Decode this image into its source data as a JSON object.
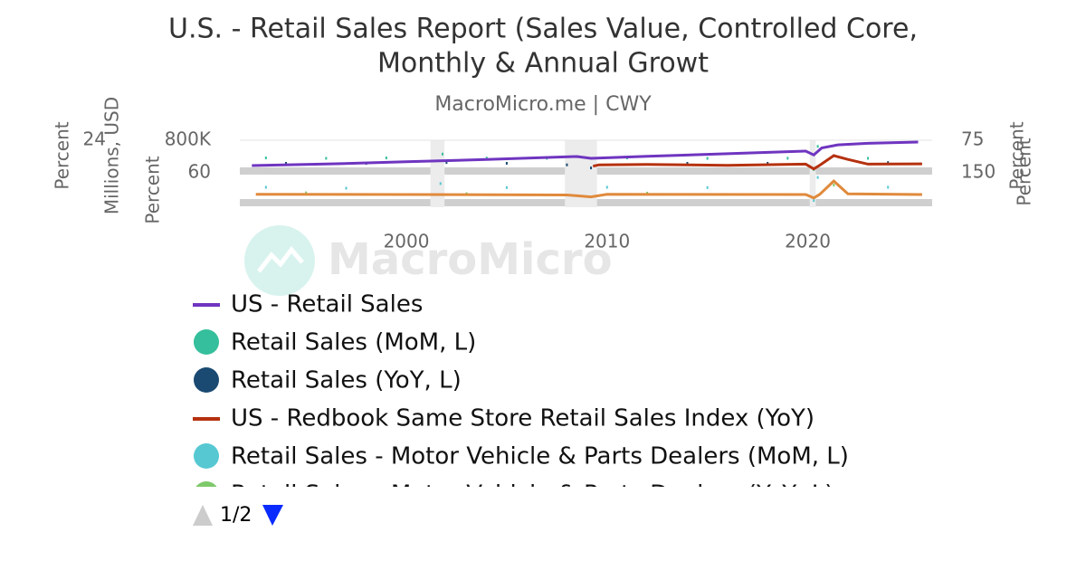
{
  "chart_data": {
    "type": "line",
    "title": [
      "U.S. - Retail Sales Report (Sales Value, Controlled Core,",
      "Monthly & Annual Growt"
    ],
    "subtitle": "MacroMicro.me | CWY",
    "watermark": "MacroMicro",
    "xlim": [
      1991.7,
      2026.2
    ],
    "xticks": [
      2000,
      2010,
      2020
    ],
    "recessions": [
      [
        2001.2,
        2001.9
      ],
      [
        2007.9,
        2009.5
      ],
      [
        2020.1,
        2020.4
      ]
    ],
    "axes": [
      {
        "label": "Percent",
        "side": "left",
        "panel": 0,
        "lim": [
          -16,
          24
        ],
        "ticks": [
          24
        ]
      },
      {
        "label": "Millions, USD",
        "side": "left",
        "panel": 0,
        "lim": [
          0,
          800000
        ],
        "ticks": [
          {
            "value": 800000,
            "label": "800K"
          }
        ]
      },
      {
        "label": "Percent",
        "side": "left",
        "panel": 1,
        "lim": [
          -40,
          60
        ],
        "ticks": [
          60
        ]
      },
      {
        "label": "Percent",
        "side": "right",
        "panel": 0,
        "lim": [
          -15,
          75
        ],
        "ticks": [
          75
        ]
      },
      {
        "label": "Percent",
        "side": "right",
        "panel": 1,
        "lim": [
          -150,
          150
        ],
        "ticks": [
          150
        ]
      }
    ],
    "series": [
      {
        "name": "US - Retail Sales",
        "color": "#6f35c0",
        "style": "line",
        "axis": 1,
        "x": [
          1992.3,
          1996,
          2000,
          2004,
          2008.5,
          2009.2,
          2012,
          2016,
          2019.9,
          2020.3,
          2020.7,
          2021.5,
          2023,
          2025.5
        ],
        "values": [
          141000,
          180000,
          240000,
          300000,
          376000,
          330000,
          380000,
          450000,
          518000,
          420000,
          600000,
          680000,
          720000,
          753000
        ]
      },
      {
        "name": "Retail Sales (MoM, L)",
        "color": "#35bf9c",
        "style": "dots",
        "axis": 0,
        "x": [
          1993,
          1996,
          1999,
          2001.8,
          2004,
          2007,
          2011,
          2015,
          2019,
          2020.3,
          2020.5,
          2023
        ],
        "values": [
          1,
          0.5,
          1,
          6,
          0.8,
          0.6,
          1,
          0.4,
          0.6,
          -14,
          16,
          0.5
        ]
      },
      {
        "name": "Retail Sales (YoY, L)",
        "color": "#1a4a72",
        "style": "dots",
        "axis": 0,
        "x": [
          1994,
          1998,
          2002,
          2005,
          2008,
          2009.2,
          2014,
          2018,
          2021.3,
          2024
        ],
        "values": [
          -6,
          -6,
          -5,
          -6,
          -8,
          -12,
          -6,
          -6,
          4,
          -5
        ]
      },
      {
        "name": "US - Redbook Same Store Retail Sales Index (YoY)",
        "color": "#b5310f",
        "style": "line",
        "axis": 3,
        "x": [
          2009.3,
          2009.6,
          2012,
          2016,
          2019.9,
          2020.3,
          2020.6,
          2021.3,
          2022,
          2023,
          2025.7
        ],
        "values": [
          -1,
          3,
          4.4,
          1.5,
          5,
          -9,
          2,
          30,
          19,
          5,
          6
        ]
      },
      {
        "name": "Retail Sales - Motor Vehicle & Parts Dealers (MoM, L)",
        "color": "#56c8d2",
        "style": "dots",
        "axis": 2,
        "x": [
          1993,
          1997,
          2001.7,
          2005,
          2010,
          2015,
          2020.3,
          2020.5,
          2024
        ],
        "values": [
          13,
          10,
          25,
          12,
          13,
          12,
          -30,
          45,
          13
        ]
      },
      {
        "name": "Retail Sales - Motor Vehicle & Parts Dealers (YoY, L)",
        "color": "#7dc96a",
        "style": "dots",
        "axis": 2,
        "x": [
          1995,
          2003,
          2012,
          2021.3
        ],
        "values": [
          -5,
          -8,
          -6,
          20
        ]
      },
      {
        "color": "#e08a3c",
        "style": "line",
        "axis": 4,
        "x": [
          1992.5,
          2000,
          2008,
          2009.2,
          2010,
          2019.9,
          2020.3,
          2020.6,
          2021.3,
          2022,
          2025.7
        ],
        "values": [
          -60,
          -62,
          -66,
          -85,
          -60,
          -62,
          -95,
          -60,
          70,
          -55,
          -62
        ]
      }
    ],
    "pager": "1/2"
  }
}
